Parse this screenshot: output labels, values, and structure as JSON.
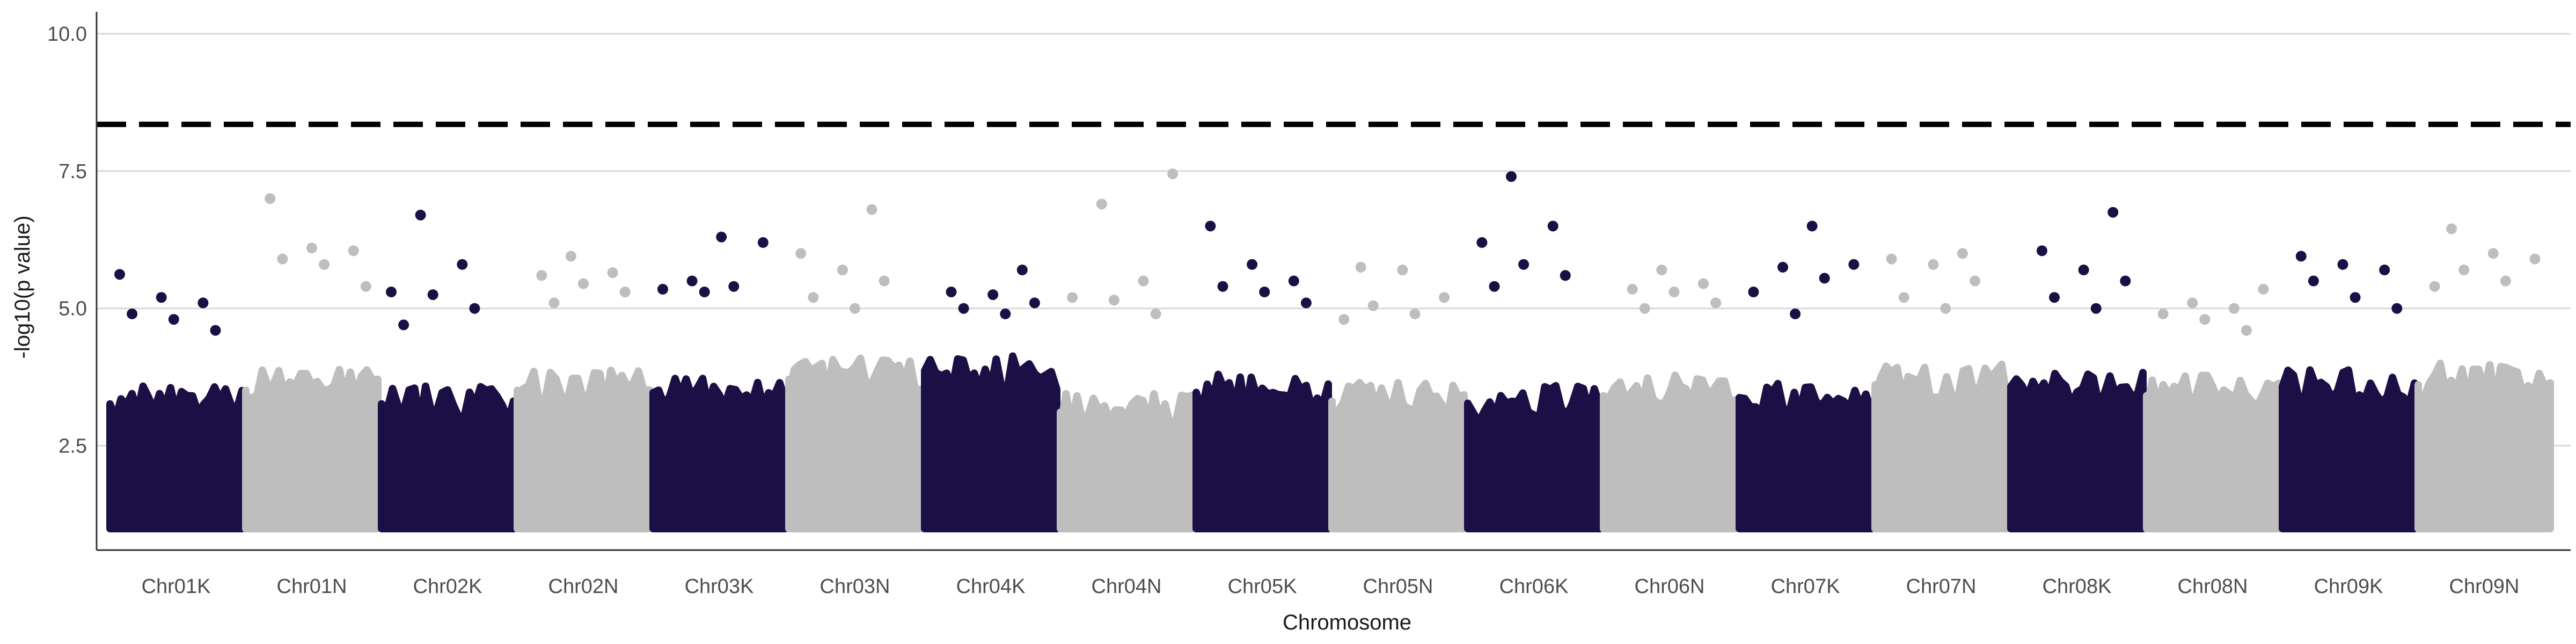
{
  "chart_data": {
    "type": "scatter",
    "xlabel": "Chromosome",
    "ylabel": "-log10(p value)",
    "ylim": [
      0.6,
      10.4
    ],
    "yticks": [
      "2.5",
      "5.0",
      "7.5",
      "10.0"
    ],
    "grid": "horizontal major lines",
    "legend": "none",
    "threshold": 8.35,
    "colors": {
      "odd": "#1c0f45",
      "even": "#bebebe",
      "threshold": "#000000",
      "grid": "#d9d9d9",
      "axis": "#333333"
    },
    "categories": [
      "Chr01K",
      "Chr01N",
      "Chr02K",
      "Chr02N",
      "Chr03K",
      "Chr03N",
      "Chr04K",
      "Chr04N",
      "Chr05K",
      "Chr05N",
      "Chr06K",
      "Chr06N",
      "Chr07K",
      "Chr07N",
      "Chr08K",
      "Chr08N",
      "Chr09K",
      "Chr09N"
    ],
    "series": [
      {
        "values": [
          5.62,
          5.2,
          5.1,
          4.9,
          4.8,
          4.6
        ]
      },
      {
        "values": [
          7.0,
          6.1,
          6.05,
          5.9,
          5.8,
          5.4
        ]
      },
      {
        "values": [
          6.7,
          5.8,
          5.3,
          5.25,
          5.0,
          4.7
        ]
      },
      {
        "values": [
          5.95,
          5.65,
          5.6,
          5.45,
          5.3,
          5.1
        ]
      },
      {
        "values": [
          6.3,
          6.2,
          5.5,
          5.4,
          5.35,
          5.3
        ]
      },
      {
        "values": [
          6.8,
          6.0,
          5.7,
          5.5,
          5.2,
          5.0
        ]
      },
      {
        "values": [
          5.7,
          5.3,
          5.25,
          5.1,
          5.0,
          4.9
        ]
      },
      {
        "values": [
          7.45,
          6.9,
          5.5,
          5.2,
          5.15,
          4.9
        ]
      },
      {
        "values": [
          6.5,
          5.8,
          5.5,
          5.4,
          5.3,
          5.1
        ]
      },
      {
        "values": [
          5.75,
          5.7,
          5.2,
          5.05,
          4.9,
          4.8
        ]
      },
      {
        "values": [
          7.4,
          6.5,
          6.2,
          5.8,
          5.6,
          5.4
        ]
      },
      {
        "values": [
          5.7,
          5.45,
          5.35,
          5.3,
          5.1,
          5.0
        ]
      },
      {
        "values": [
          6.5,
          5.8,
          5.75,
          5.55,
          5.3,
          4.9
        ]
      },
      {
        "values": [
          6.0,
          5.9,
          5.8,
          5.5,
          5.2,
          5.0
        ]
      },
      {
        "values": [
          6.75,
          6.05,
          5.7,
          5.5,
          5.2,
          5.0
        ]
      },
      {
        "values": [
          5.35,
          5.1,
          5.0,
          4.9,
          4.8,
          4.6
        ]
      },
      {
        "values": [
          5.95,
          5.8,
          5.7,
          5.5,
          5.2,
          5.0
        ]
      },
      {
        "values": [
          6.45,
          6.0,
          5.9,
          5.7,
          5.5,
          5.4
        ]
      }
    ],
    "bulk_top": [
      3.6,
      3.9,
      3.6,
      3.9,
      3.8,
      4.1,
      4.2,
      3.5,
      3.8,
      3.7,
      3.6,
      3.8,
      3.7,
      4.0,
      3.9,
      3.8,
      3.9,
      4.0
    ]
  }
}
